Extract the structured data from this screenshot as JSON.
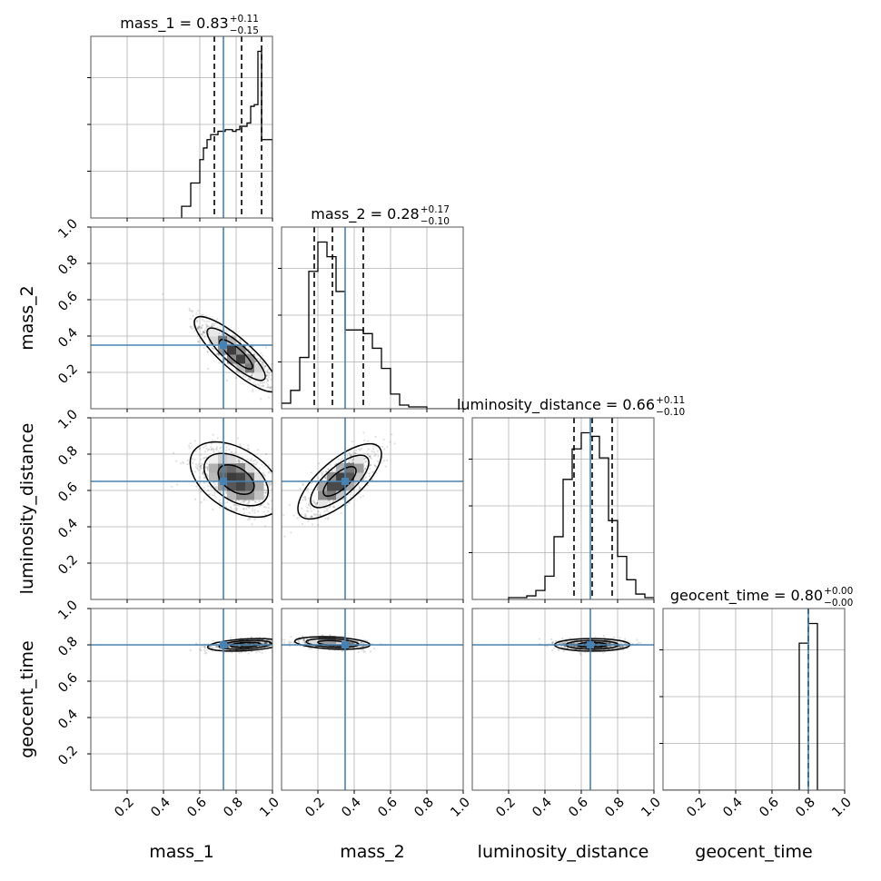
{
  "chart_data": {
    "type": "corner",
    "parameters": [
      "mass_1",
      "mass_2",
      "luminosity_distance",
      "geocent_time"
    ],
    "axis_labels": [
      "mass_1",
      "mass_2",
      "luminosity_distance",
      "geocent_time"
    ],
    "xlim": [
      0,
      1
    ],
    "ylim": [
      0,
      1
    ],
    "ticks": [
      0.2,
      0.4,
      0.6,
      0.8,
      1.0
    ],
    "tick_labels": [
      "0.2",
      "0.4",
      "0.6",
      "0.8",
      "1.0"
    ],
    "grid": true,
    "truths": [
      0.73,
      0.35,
      0.65,
      0.8
    ],
    "truth_color": "#4682b4",
    "titles": [
      {
        "name": "mass_1",
        "text": "mass_1 = 0.83",
        "plus": "+0.11",
        "minus": "−0.15"
      },
      {
        "name": "mass_2",
        "text": "mass_2 = 0.28",
        "plus": "+0.17",
        "minus": "−0.10"
      },
      {
        "name": "luminosity_distance",
        "text": "luminosity_distance = 0.66",
        "plus": "+0.11",
        "minus": "−0.10"
      },
      {
        "name": "geocent_time",
        "text": "geocent_time = 0.80",
        "plus": "+0.00",
        "minus": "−0.00"
      }
    ],
    "quantiles": [
      [
        0.68,
        0.83,
        0.94
      ],
      [
        0.18,
        0.28,
        0.45
      ],
      [
        0.56,
        0.66,
        0.77
      ],
      [
        0.8,
        0.8,
        0.8
      ]
    ],
    "histograms": [
      {
        "bin_edges": [
          0.5,
          0.55,
          0.6,
          0.62,
          0.64,
          0.66,
          0.68,
          0.7,
          0.72,
          0.74,
          0.76,
          0.78,
          0.8,
          0.82,
          0.84,
          0.86,
          0.88,
          0.9,
          0.92,
          0.94,
          0.96,
          1.0
        ],
        "counts": [
          0.07,
          0.21,
          0.35,
          0.42,
          0.47,
          0.5,
          0.5,
          0.52,
          0.52,
          0.53,
          0.53,
          0.52,
          0.53,
          0.55,
          0.55,
          0.57,
          0.67,
          0.68,
          1.0,
          0.47,
          0.47
        ]
      },
      {
        "bin_edges": [
          0.0,
          0.05,
          0.1,
          0.15,
          0.2,
          0.25,
          0.3,
          0.35,
          0.4,
          0.45,
          0.5,
          0.55,
          0.6,
          0.65,
          0.7,
          0.8,
          1.0
        ],
        "counts": [
          0.03,
          0.1,
          0.28,
          0.75,
          0.91,
          0.83,
          0.64,
          0.43,
          0.43,
          0.41,
          0.33,
          0.22,
          0.08,
          0.02,
          0.01,
          0.0
        ]
      },
      {
        "bin_edges": [
          0.2,
          0.3,
          0.35,
          0.4,
          0.45,
          0.5,
          0.55,
          0.6,
          0.65,
          0.7,
          0.75,
          0.8,
          0.85,
          0.9,
          0.95,
          1.0
        ],
        "counts": [
          0.01,
          0.02,
          0.05,
          0.13,
          0.35,
          0.67,
          0.84,
          0.93,
          0.91,
          0.79,
          0.44,
          0.24,
          0.11,
          0.03,
          0.01
        ]
      },
      {
        "bin_edges": [
          0.0,
          0.75,
          0.8,
          0.85,
          1.0
        ],
        "counts": [
          0.0,
          0.75,
          0.85,
          0.0
        ]
      }
    ],
    "pairs": [
      {
        "x": 0,
        "y": 1,
        "mean": [
          0.8,
          0.3
        ],
        "sd": [
          0.1,
          0.09
        ],
        "corr": -0.85
      },
      {
        "x": 0,
        "y": 2,
        "mean": [
          0.8,
          0.66
        ],
        "sd": [
          0.11,
          0.09
        ],
        "corr": -0.45
      },
      {
        "x": 1,
        "y": 2,
        "mean": [
          0.32,
          0.65
        ],
        "sd": [
          0.1,
          0.09
        ],
        "corr": 0.72
      },
      {
        "x": 0,
        "y": 3,
        "mean": [
          0.85,
          0.8
        ],
        "sd": [
          0.09,
          0.015
        ],
        "corr": 0.35
      },
      {
        "x": 1,
        "y": 3,
        "mean": [
          0.28,
          0.81
        ],
        "sd": [
          0.09,
          0.015
        ],
        "corr": -0.3
      },
      {
        "x": 2,
        "y": 3,
        "mean": [
          0.66,
          0.8
        ],
        "sd": [
          0.09,
          0.015
        ],
        "corr": 0.0
      }
    ]
  }
}
